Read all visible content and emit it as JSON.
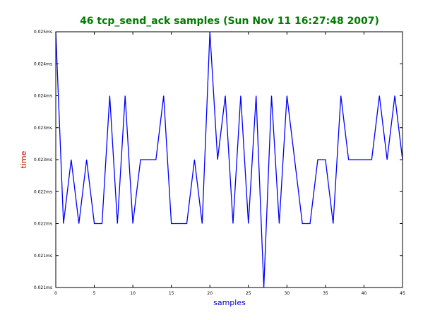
{
  "colors": {
    "title": "#007a00",
    "xlabel": "#0000cc",
    "ylabel": "#cc0000",
    "line": "#0000ff",
    "axes": "#000000",
    "background": "#ffffff"
  },
  "chart_data": {
    "type": "line",
    "title": "46 tcp_send_ack samples (Sun Nov 11 16:27:48 2007)",
    "xlabel": "samples",
    "ylabel": "time",
    "xlim": [
      0,
      45
    ],
    "ylim": [
      0.021,
      0.025
    ],
    "grid": false,
    "x_ticks": [
      0,
      5,
      10,
      15,
      20,
      25,
      30,
      35,
      40,
      45
    ],
    "x_tick_labels": [
      "0",
      "5",
      "10",
      "15",
      "20",
      "25",
      "30",
      "35",
      "40",
      "45"
    ],
    "y_ticks": [
      0.021,
      0.0215,
      0.022,
      0.0225,
      0.023,
      0.0235,
      0.024,
      0.0245,
      0.025
    ],
    "y_tick_labels": [
      "0.021ms",
      "0.021ms",
      "0.022ms",
      "0.022ms",
      "0.023ms",
      "0.023ms",
      "0.024ms",
      "0.024ms",
      "0.025ms"
    ],
    "series": [
      {
        "x": [
          0,
          1,
          2,
          3,
          4,
          5,
          6,
          7,
          8,
          9,
          10,
          11,
          12,
          13,
          14,
          15,
          16,
          17,
          18,
          19,
          20,
          21,
          22,
          23,
          24,
          25,
          26,
          27,
          28,
          29,
          30,
          31,
          32,
          33,
          34,
          35,
          36,
          37,
          38,
          39,
          40,
          41,
          42,
          43,
          44,
          45
        ],
        "values": [
          0.025,
          0.022,
          0.023,
          0.022,
          0.023,
          0.022,
          0.022,
          0.024,
          0.022,
          0.024,
          0.022,
          0.023,
          0.023,
          0.023,
          0.024,
          0.022,
          0.022,
          0.022,
          0.023,
          0.022,
          0.025,
          0.023,
          0.024,
          0.022,
          0.024,
          0.022,
          0.024,
          0.021,
          0.024,
          0.022,
          0.024,
          0.023,
          0.022,
          0.022,
          0.023,
          0.023,
          0.022,
          0.024,
          0.023,
          0.023,
          0.023,
          0.023,
          0.024,
          0.023,
          0.024,
          0.023
        ]
      }
    ]
  }
}
